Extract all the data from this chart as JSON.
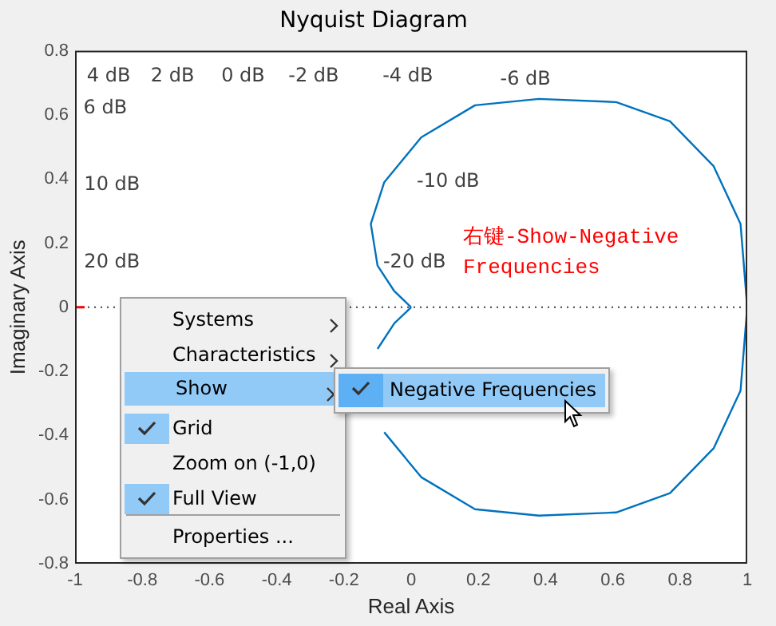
{
  "chart_data": {
    "type": "line",
    "title": "Nyquist Diagram",
    "xlabel": "Real Axis",
    "ylabel": "Imaginary Axis",
    "xlim": [
      -1,
      1
    ],
    "xticks": [
      -1,
      -0.8,
      -0.6,
      -0.4,
      -0.2,
      0,
      0.2,
      0.4,
      0.6,
      0.8,
      1
    ],
    "ylim": [
      -0.8,
      0.8
    ],
    "yticks": [
      -0.8,
      -0.6,
      -0.4,
      -0.2,
      0,
      0.2,
      0.4,
      0.6,
      0.8
    ],
    "series": [
      {
        "type": "line",
        "color": "#0072bd",
        "x": [
          0,
          -0.05,
          -0.1,
          -0.12,
          -0.08,
          0.03,
          0.19,
          0.38,
          0.61,
          0.77,
          0.9,
          0.98,
          1,
          0.98,
          0.9,
          0.77,
          0.61,
          0.38,
          0.19,
          0.03,
          -0.08,
          null,
          -0.1,
          -0.05,
          0
        ],
        "values": [
          0,
          0.05,
          0.13,
          0.26,
          0.39,
          0.53,
          0.63,
          0.65,
          0.64,
          0.58,
          0.44,
          0.26,
          0,
          -0.26,
          -0.44,
          -0.58,
          -0.64,
          -0.65,
          -0.63,
          -0.53,
          -0.39,
          null,
          -0.13,
          -0.05,
          0
        ]
      },
      {
        "type": "scatter",
        "color": "#ff0000",
        "marker": "cross",
        "x": [
          -1
        ],
        "values": [
          0
        ]
      }
    ],
    "ref_lines": [
      {
        "axis": "y",
        "value": 0,
        "color": "#404040",
        "line_style": "dotted"
      }
    ],
    "annotations": [
      "4 dB",
      "2 dB",
      "0 dB",
      "-2 dB",
      "-4 dB",
      "-6 dB",
      "6 dB",
      "10 dB",
      "20 dB",
      "-10 dB",
      "-20 dB",
      "右键-Show-Negative Frequencies",
      "Systems",
      "Characteristics",
      "Show",
      "Grid",
      "Zoom on (-1,0)",
      "Full View",
      "Properties ...",
      "Negative Frequencies"
    ]
  }
}
